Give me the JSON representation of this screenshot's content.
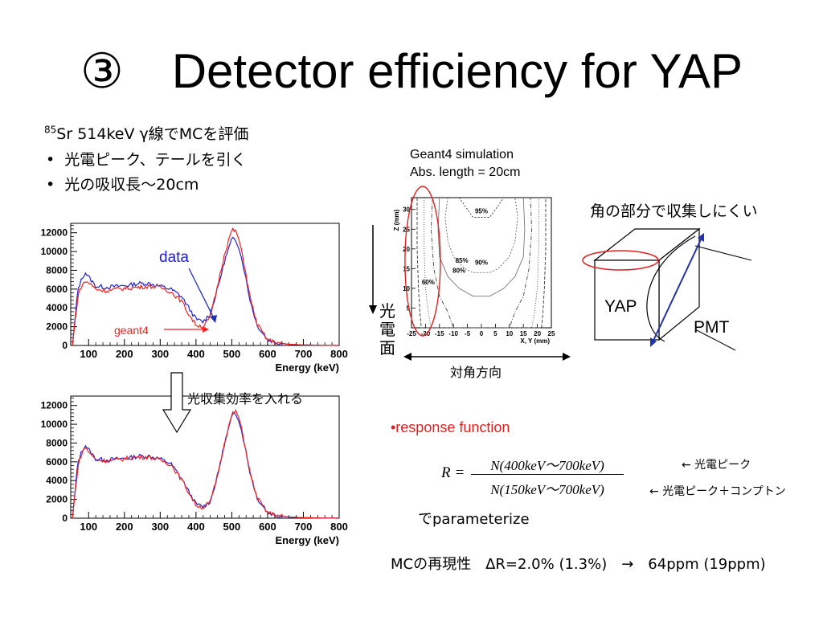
{
  "slide": {
    "title": "③　Detector efficiency for YAP",
    "intro": {
      "sup": "85",
      "line": "Sr 514keV γ線でMCを評価"
    },
    "bullets": [
      "光電ピーク、テールを引く",
      "光の吸収長～20cm"
    ],
    "arrow_label": "光収集効率を入れる",
    "sim_label": [
      "Geant4 simulation",
      "Abs. length = 20cm"
    ],
    "pc_label": [
      "光",
      "電",
      "面"
    ],
    "diag_label": "対角方向",
    "corner_label": "角の部分で収集しにくい",
    "yap_label": "YAP",
    "pmt_label": "PMT",
    "response": "•response function",
    "formula": {
      "lhs": "R =",
      "numerator": "N(400keV～700keV)",
      "denominator": "N(150keV～700keV)"
    },
    "formula_notes": [
      "← 光電ピーク",
      "← 光電ピーク＋コンプトン"
    ],
    "parameterize": "でparameterize",
    "mc_line": "MCの再現性　ΔR=2.0% (1.3%)　→　64ppm (19ppm)",
    "colors": {
      "data": "#2222cc",
      "geant4": "#ee2222",
      "accent_red": "#dd2222",
      "arrow_blue": "#2233aa"
    }
  },
  "chart_data": [
    {
      "type": "line",
      "xlabel": "Energy (keV)",
      "xlim": [
        50,
        800
      ],
      "ylim": [
        0,
        13000
      ],
      "xticks": [
        100,
        200,
        300,
        400,
        500,
        600,
        700,
        800
      ],
      "yticks": [
        0,
        2000,
        4000,
        6000,
        8000,
        10000,
        12000
      ],
      "annotations": [
        "data",
        "geant4"
      ],
      "series": [
        {
          "name": "data",
          "color": "#2222cc",
          "x": [
            55,
            70,
            80,
            90,
            100,
            120,
            150,
            180,
            210,
            240,
            270,
            300,
            330,
            360,
            380,
            400,
            420,
            440,
            460,
            480,
            500,
            510,
            520,
            535,
            550,
            570,
            600,
            630,
            660,
            700,
            750,
            800
          ],
          "y": [
            0,
            6000,
            7000,
            7800,
            7300,
            6300,
            6200,
            6300,
            6400,
            6600,
            6600,
            6300,
            6000,
            5200,
            4000,
            2800,
            2500,
            3400,
            6000,
            9000,
            11300,
            11300,
            10500,
            8000,
            5000,
            2200,
            600,
            250,
            120,
            60,
            20,
            0
          ]
        },
        {
          "name": "geant4",
          "color": "#ee2222",
          "x": [
            55,
            70,
            80,
            90,
            100,
            120,
            150,
            180,
            210,
            240,
            270,
            300,
            330,
            360,
            380,
            400,
            420,
            440,
            460,
            480,
            500,
            510,
            520,
            535,
            550,
            570,
            600,
            630,
            660,
            700,
            750,
            800
          ],
          "y": [
            0,
            5300,
            6300,
            6800,
            6700,
            6000,
            5800,
            6000,
            6100,
            6200,
            6300,
            6200,
            5700,
            4700,
            3300,
            2200,
            2000,
            3000,
            6300,
            9800,
            12300,
            12200,
            11300,
            8600,
            5300,
            2300,
            600,
            250,
            120,
            60,
            20,
            0
          ]
        }
      ]
    },
    {
      "type": "line",
      "xlabel": "Energy (keV)",
      "xlim": [
        50,
        800
      ],
      "ylim": [
        0,
        13000
      ],
      "xticks": [
        100,
        200,
        300,
        400,
        500,
        600,
        700,
        800
      ],
      "yticks": [
        0,
        2000,
        4000,
        6000,
        8000,
        10000,
        12000
      ],
      "series": [
        {
          "name": "data",
          "color": "#2222cc",
          "x": [
            55,
            70,
            80,
            90,
            100,
            120,
            150,
            180,
            210,
            240,
            270,
            300,
            330,
            360,
            380,
            400,
            420,
            440,
            460,
            480,
            500,
            510,
            520,
            535,
            550,
            570,
            600,
            630,
            660,
            700,
            750,
            800
          ],
          "y": [
            0,
            6000,
            7000,
            7800,
            7300,
            6300,
            6200,
            6300,
            6400,
            6600,
            6600,
            6300,
            5800,
            4200,
            2800,
            1500,
            1200,
            1800,
            4500,
            8000,
            10800,
            11200,
            10500,
            8000,
            5000,
            2200,
            600,
            250,
            120,
            60,
            20,
            0
          ]
        },
        {
          "name": "geant4",
          "color": "#ee2222",
          "x": [
            55,
            70,
            80,
            90,
            100,
            120,
            150,
            180,
            210,
            240,
            270,
            300,
            330,
            360,
            380,
            400,
            420,
            440,
            460,
            480,
            500,
            510,
            520,
            535,
            550,
            570,
            600,
            630,
            660,
            700,
            750,
            800
          ],
          "y": [
            0,
            5500,
            6800,
            7600,
            7100,
            6200,
            6100,
            6200,
            6400,
            6500,
            6500,
            6200,
            5700,
            4100,
            2700,
            1400,
            1100,
            1700,
            4500,
            8100,
            11000,
            11400,
            10700,
            8100,
            5000,
            2200,
            600,
            250,
            120,
            60,
            20,
            0
          ]
        }
      ]
    },
    {
      "type": "contour",
      "xlabel": "X, Y (mm)",
      "ylabel": "Z (mm)",
      "xlim": [
        -25,
        25
      ],
      "ylim": [
        0,
        33
      ],
      "xticks": [
        -25,
        -20,
        -15,
        -10,
        -5,
        0,
        5,
        10,
        15,
        20,
        25
      ],
      "xtick_labels": [
        "-25",
        "-20",
        "-15",
        "-10",
        "-5",
        "0",
        "5",
        "10",
        "15",
        "20",
        "25"
      ],
      "yticks": [
        5,
        10,
        15,
        20,
        25,
        30
      ],
      "contour_labels": [
        {
          "text": "95%",
          "x": 0,
          "y": 29
        },
        {
          "text": "90%",
          "x": 0,
          "y": 16
        },
        {
          "text": "85%",
          "x": -7,
          "y": 16.5
        },
        {
          "text": "80%",
          "x": -8,
          "y": 14
        },
        {
          "text": "60%",
          "x": -19,
          "y": 11
        }
      ]
    }
  ]
}
